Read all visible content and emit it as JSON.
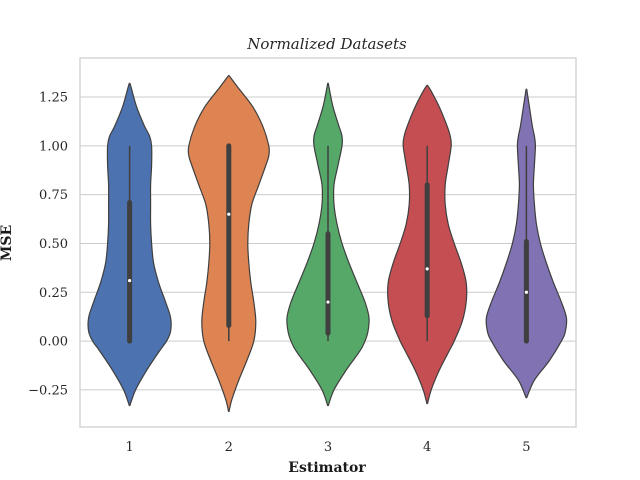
{
  "chart_data": {
    "type": "violin",
    "title": "Normalized Datasets",
    "xlabel": "Estimator",
    "ylabel": "MSE",
    "categories": [
      "1",
      "2",
      "3",
      "4",
      "5"
    ],
    "ylim": [
      -0.44,
      1.45
    ],
    "yticks": [
      -0.25,
      0.0,
      0.25,
      0.5,
      0.75,
      1.0,
      1.25
    ],
    "ytick_labels": [
      "−0.25",
      "0.00",
      "0.25",
      "0.50",
      "0.75",
      "1.00",
      "1.25"
    ],
    "grid": true,
    "series": [
      {
        "category": "1",
        "color": "#4c72b0",
        "min": 0.0,
        "q1": 0.0,
        "median": 0.31,
        "q3": 0.71,
        "max": 1.0,
        "kde_extent": [
          -0.33,
          1.32
        ],
        "profile": [
          [
            -0.33,
            0.3
          ],
          [
            -0.25,
            6
          ],
          [
            -0.15,
            17
          ],
          [
            -0.05,
            30
          ],
          [
            0.0,
            37
          ],
          [
            0.05,
            41
          ],
          [
            0.12,
            41
          ],
          [
            0.2,
            36
          ],
          [
            0.3,
            29
          ],
          [
            0.4,
            24
          ],
          [
            0.5,
            22
          ],
          [
            0.6,
            21
          ],
          [
            0.7,
            21
          ],
          [
            0.8,
            21
          ],
          [
            0.9,
            22
          ],
          [
            1.0,
            22
          ],
          [
            1.05,
            20
          ],
          [
            1.1,
            15
          ],
          [
            1.2,
            7
          ],
          [
            1.3,
            1.5
          ],
          [
            1.32,
            0.3
          ]
        ]
      },
      {
        "category": "2",
        "color": "#dd8452",
        "min": 0.0,
        "q1": 0.08,
        "median": 0.65,
        "q3": 1.0,
        "max": 1.0,
        "kde_extent": [
          -0.36,
          1.36
        ],
        "profile": [
          [
            -0.36,
            0.3
          ],
          [
            -0.3,
            3
          ],
          [
            -0.2,
            10
          ],
          [
            -0.1,
            18
          ],
          [
            0.0,
            25
          ],
          [
            0.1,
            27
          ],
          [
            0.2,
            25
          ],
          [
            0.3,
            22
          ],
          [
            0.4,
            20
          ],
          [
            0.5,
            19
          ],
          [
            0.6,
            20
          ],
          [
            0.7,
            23
          ],
          [
            0.8,
            30
          ],
          [
            0.9,
            37
          ],
          [
            0.95,
            40
          ],
          [
            1.0,
            40
          ],
          [
            1.1,
            34
          ],
          [
            1.2,
            24
          ],
          [
            1.3,
            9
          ],
          [
            1.36,
            0.3
          ]
        ]
      },
      {
        "category": "3",
        "color": "#55a868",
        "min": 0.0,
        "q1": 0.04,
        "median": 0.2,
        "q3": 0.55,
        "max": 1.0,
        "kde_extent": [
          -0.33,
          1.32
        ],
        "profile": [
          [
            -0.33,
            0.3
          ],
          [
            -0.25,
            6
          ],
          [
            -0.15,
            18
          ],
          [
            -0.05,
            32
          ],
          [
            0.0,
            37
          ],
          [
            0.05,
            40
          ],
          [
            0.12,
            41
          ],
          [
            0.2,
            37
          ],
          [
            0.3,
            29
          ],
          [
            0.4,
            21
          ],
          [
            0.5,
            14
          ],
          [
            0.6,
            9
          ],
          [
            0.7,
            6
          ],
          [
            0.8,
            6
          ],
          [
            0.9,
            10
          ],
          [
            1.0,
            14
          ],
          [
            1.05,
            14
          ],
          [
            1.1,
            11
          ],
          [
            1.2,
            5
          ],
          [
            1.3,
            1
          ],
          [
            1.32,
            0.3
          ]
        ]
      },
      {
        "category": "4",
        "color": "#c44e52",
        "min": 0.0,
        "q1": 0.13,
        "median": 0.37,
        "q3": 0.8,
        "max": 1.0,
        "kde_extent": [
          -0.32,
          1.31
        ],
        "profile": [
          [
            -0.32,
            0.3
          ],
          [
            -0.25,
            4
          ],
          [
            -0.15,
            12
          ],
          [
            -0.05,
            22
          ],
          [
            0.0,
            27
          ],
          [
            0.1,
            35
          ],
          [
            0.2,
            39
          ],
          [
            0.3,
            39
          ],
          [
            0.4,
            34
          ],
          [
            0.5,
            27
          ],
          [
            0.6,
            21
          ],
          [
            0.7,
            18
          ],
          [
            0.8,
            18
          ],
          [
            0.9,
            21
          ],
          [
            1.0,
            24
          ],
          [
            1.05,
            23
          ],
          [
            1.1,
            20
          ],
          [
            1.2,
            12
          ],
          [
            1.28,
            4
          ],
          [
            1.31,
            0.3
          ]
        ]
      },
      {
        "category": "5",
        "color": "#8172b3",
        "min": 0.0,
        "q1": 0.0,
        "median": 0.25,
        "q3": 0.51,
        "max": 1.0,
        "kde_extent": [
          -0.29,
          1.29
        ],
        "profile": [
          [
            -0.29,
            0.3
          ],
          [
            -0.2,
            8
          ],
          [
            -0.1,
            23
          ],
          [
            0.0,
            35
          ],
          [
            0.05,
            39
          ],
          [
            0.12,
            40
          ],
          [
            0.2,
            35
          ],
          [
            0.3,
            27
          ],
          [
            0.4,
            20
          ],
          [
            0.5,
            14
          ],
          [
            0.6,
            10
          ],
          [
            0.7,
            8
          ],
          [
            0.8,
            7
          ],
          [
            0.9,
            8
          ],
          [
            1.0,
            9
          ],
          [
            1.05,
            8
          ],
          [
            1.1,
            6
          ],
          [
            1.2,
            3
          ],
          [
            1.29,
            0.3
          ]
        ]
      }
    ]
  }
}
